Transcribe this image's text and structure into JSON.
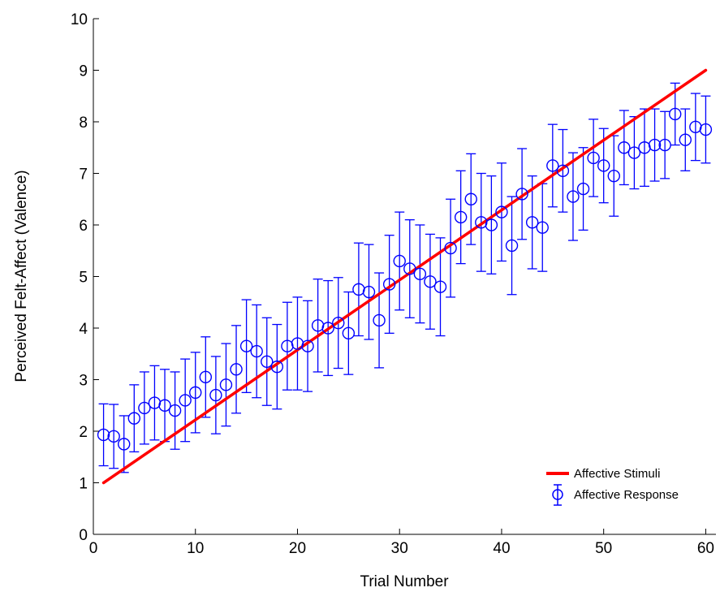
{
  "chart_data": {
    "type": "line",
    "title": "",
    "xlabel": "Trial Number",
    "ylabel": "Perceived Felt-Affect (Valence)",
    "xlim": [
      0,
      61
    ],
    "ylim": [
      0,
      10
    ],
    "xticks": [
      0,
      10,
      20,
      30,
      40,
      50,
      60
    ],
    "yticks": [
      0,
      1,
      2,
      3,
      4,
      5,
      6,
      7,
      8,
      9,
      10
    ],
    "grid": false,
    "legend_position": "bottom-right",
    "series": [
      {
        "name": "Affective Stimuli",
        "kind": "line",
        "color": "#ff0000",
        "x": [
          1,
          60
        ],
        "y": [
          1.0,
          9.0
        ]
      },
      {
        "name": "Affective Response",
        "kind": "errorbar",
        "color": "#0000ff",
        "x": [
          1,
          2,
          3,
          4,
          5,
          6,
          7,
          8,
          9,
          10,
          11,
          12,
          13,
          14,
          15,
          16,
          17,
          18,
          19,
          20,
          21,
          22,
          23,
          24,
          25,
          26,
          27,
          28,
          29,
          30,
          31,
          32,
          33,
          34,
          35,
          36,
          37,
          38,
          39,
          40,
          41,
          42,
          43,
          44,
          45,
          46,
          47,
          48,
          49,
          50,
          51,
          52,
          53,
          54,
          55,
          56,
          57,
          58,
          59,
          60
        ],
        "y": [
          1.93,
          1.9,
          1.75,
          2.25,
          2.45,
          2.55,
          2.5,
          2.4,
          2.6,
          2.75,
          3.05,
          2.7,
          2.9,
          3.2,
          3.65,
          3.55,
          3.35,
          3.25,
          3.65,
          3.7,
          3.65,
          4.05,
          4.0,
          4.1,
          3.9,
          4.75,
          4.7,
          4.15,
          4.85,
          5.3,
          5.15,
          5.05,
          4.9,
          4.8,
          5.55,
          6.15,
          6.5,
          6.05,
          6.0,
          6.25,
          5.6,
          6.6,
          6.05,
          5.95,
          7.15,
          7.05,
          6.55,
          6.7,
          7.3,
          7.15,
          6.95,
          7.5,
          7.4,
          7.5,
          7.55,
          7.55,
          8.15,
          7.65,
          7.9,
          7.85
        ],
        "err": [
          0.6,
          0.62,
          0.55,
          0.65,
          0.7,
          0.72,
          0.7,
          0.75,
          0.8,
          0.78,
          0.78,
          0.75,
          0.8,
          0.85,
          0.9,
          0.9,
          0.85,
          0.82,
          0.85,
          0.9,
          0.88,
          0.9,
          0.92,
          0.88,
          0.8,
          0.9,
          0.92,
          0.92,
          0.95,
          0.95,
          0.95,
          0.95,
          0.92,
          0.95,
          0.95,
          0.9,
          0.88,
          0.95,
          0.95,
          0.95,
          0.95,
          0.88,
          0.9,
          0.85,
          0.8,
          0.8,
          0.85,
          0.8,
          0.75,
          0.72,
          0.78,
          0.72,
          0.7,
          0.75,
          0.7,
          0.65,
          0.6,
          0.6,
          0.65,
          0.65
        ]
      }
    ]
  }
}
